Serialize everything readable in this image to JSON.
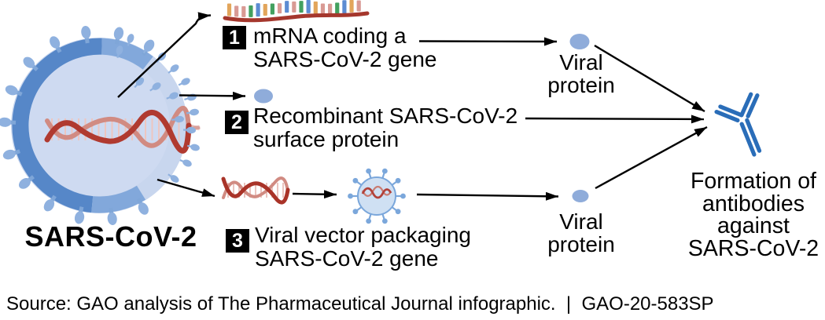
{
  "virus": {
    "label": "SARS-CoV-2"
  },
  "steps": [
    {
      "number": "1",
      "lines": [
        "mRNA coding a",
        "SARS-CoV-2 gene"
      ]
    },
    {
      "number": "2",
      "lines": [
        "Recombinant SARS-CoV-2",
        "surface protein"
      ]
    },
    {
      "number": "3",
      "lines": [
        "Viral vector packaging",
        "SARS-CoV-2 gene"
      ]
    }
  ],
  "outputs": {
    "viral_protein_top": {
      "lines": [
        "Viral",
        "protein"
      ]
    },
    "viral_protein_bottom": {
      "lines": [
        "Viral",
        "protein"
      ]
    },
    "formation": {
      "lines": [
        "Formation of",
        "antibodies",
        "against",
        "SARS-CoV-2"
      ]
    }
  },
  "source": {
    "text": "Source: GAO analysis of The Pharmaceutical Journal infographic.  |  GAO-20-583SP"
  },
  "icons": {
    "virion": "sars-cov-2-virion",
    "mrna_strand": {
      "baseline_color": "#A5372D",
      "palette": {
        "orange": "#E2A55B",
        "pink": "#D99A94",
        "green": "#43A05F",
        "blue": "#5C8CD2"
      },
      "sequence": [
        "orange",
        "pink",
        "pink",
        "green",
        "blue",
        "orange",
        "green",
        "pink",
        "blue",
        "pink",
        "green",
        "blue",
        "orange",
        "pink",
        "pink",
        "green",
        "blue",
        "orange",
        "pink"
      ]
    },
    "colors": {
      "antibody": "#2A6DB8",
      "viral_protein_dot": "#8FACDA",
      "virus_body": "#C8D6EE",
      "virus_interior": "#CEDAF1",
      "virus_ring_dark": "#5687C8",
      "virus_ring_light": "#82A8DB",
      "virus_spike": "#8FB1DF",
      "helix_dark": "#B03A30",
      "helix_light": "#D18B82",
      "arrow": "#000000"
    }
  }
}
